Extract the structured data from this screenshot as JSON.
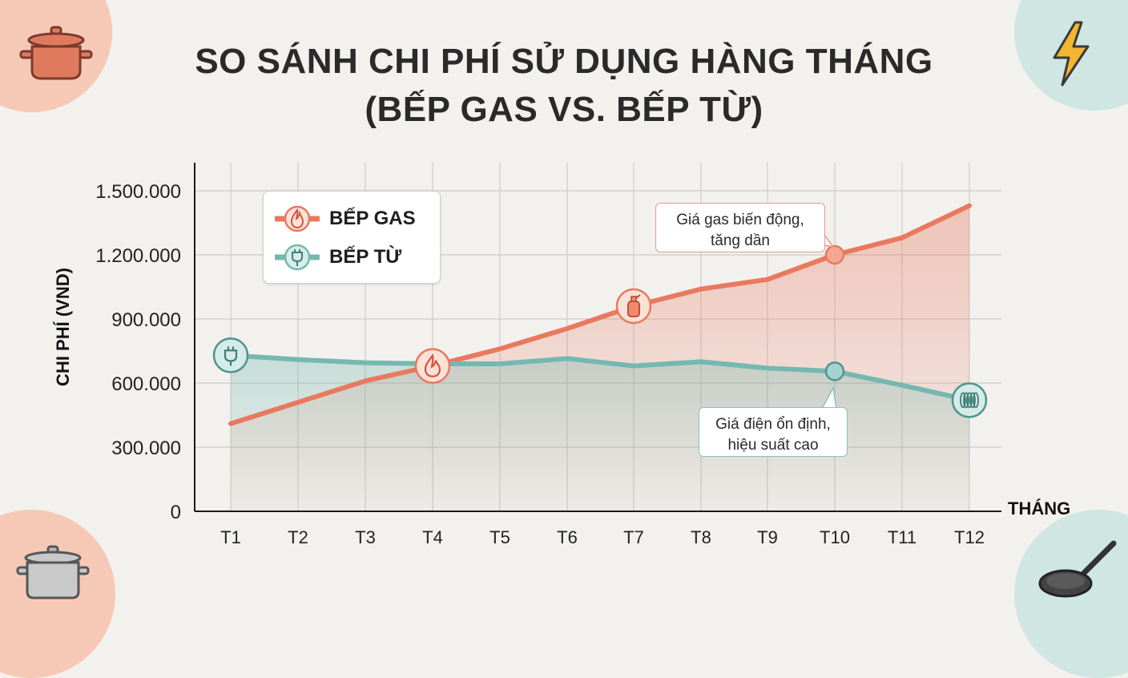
{
  "title": {
    "line1": "SO SÁNH CHI PHÍ SỬ DỤNG HÀNG THÁNG",
    "line2": "(BẾP GAS VS. BẾP TỪ)"
  },
  "legend": {
    "gas_label": "BẾP GAS",
    "electric_label": "BẾP TỪ"
  },
  "annotations": {
    "gas_line1": "Giá gas biến động,",
    "gas_line2": "tăng dần",
    "electric_line1": "Giá điện ổn định,",
    "electric_line2": "hiệu suất cao"
  },
  "colors": {
    "gas": "#e8795f",
    "electric": "#74b8b0",
    "background": "#f3f1ee"
  },
  "icons": {
    "gas_legend": "flame-icon",
    "electric_legend": "plug-icon",
    "gas_point_T4": "flame-icon",
    "gas_point_T7": "gas-cylinder-icon",
    "electric_point_T1": "plug-icon",
    "electric_point_T12": "induction-coil-icon",
    "decor_top_left": "cooking-pot-icon",
    "decor_top_right": "lightning-bolt-icon",
    "decor_bottom_left": "stock-pot-icon",
    "decor_bottom_right": "frying-pan-icon"
  },
  "chart_data": {
    "type": "line",
    "xlabel": "THÁNG",
    "ylabel": "CHI PHÍ (VND)",
    "categories": [
      "T1",
      "T2",
      "T3",
      "T4",
      "T5",
      "T6",
      "T7",
      "T8",
      "T9",
      "T10",
      "T11",
      "T12"
    ],
    "y_ticks": [
      "0",
      "300.000",
      "600.000",
      "900.000",
      "1.200.000",
      "1.500.000"
    ],
    "ylim": [
      0,
      1500000
    ],
    "grid": true,
    "legend_position": "top-left",
    "series": [
      {
        "name": "BẾP GAS",
        "values": [
          410000,
          510000,
          610000,
          680000,
          760000,
          855000,
          960000,
          1040000,
          1085000,
          1200000,
          1280000,
          1430000
        ]
      },
      {
        "name": "BẾP TỪ",
        "values": [
          730000,
          710000,
          695000,
          690000,
          690000,
          715000,
          680000,
          700000,
          670000,
          655000,
          590000,
          520000
        ]
      }
    ]
  }
}
